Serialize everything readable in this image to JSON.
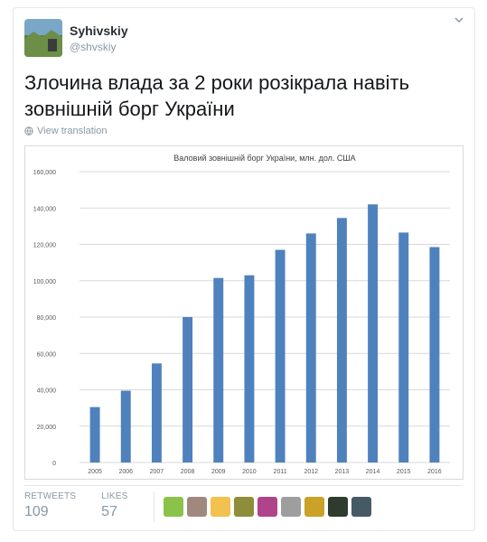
{
  "user": {
    "display_name": "Syhivskiy",
    "handle": "@shvskiy"
  },
  "tweet": {
    "text": "Злочина влада за 2 роки розікрала навіть зовнішній борг України",
    "translate_label": "View translation"
  },
  "stats": {
    "retweets_label": "RETWEETS",
    "retweets_value": "109",
    "likes_label": "LIKES",
    "likes_value": "57"
  },
  "likers": [
    {
      "icon": "liker-avatar",
      "color": "#8bc34a"
    },
    {
      "icon": "liker-avatar",
      "color": "#a1887f"
    },
    {
      "icon": "liker-avatar",
      "color": "#f2c14e"
    },
    {
      "icon": "liker-avatar",
      "color": "#8d8d3a"
    },
    {
      "icon": "liker-avatar",
      "color": "#b0448a"
    },
    {
      "icon": "liker-avatar",
      "color": "#9e9e9e"
    },
    {
      "icon": "liker-avatar",
      "color": "#c9a227"
    },
    {
      "icon": "liker-avatar",
      "color": "#2f3b2f"
    },
    {
      "icon": "liker-avatar",
      "color": "#455a64"
    }
  ],
  "chart_data": {
    "type": "bar",
    "title": "Валовий зовнішній борг України, млн. дол. США",
    "categories": [
      "2005",
      "2006",
      "2007",
      "2008",
      "2009",
      "2010",
      "2011",
      "2012",
      "2013",
      "2014",
      "2015",
      "2016"
    ],
    "values": [
      30500,
      39500,
      54500,
      80000,
      101500,
      103000,
      117000,
      126000,
      134500,
      142000,
      126500,
      118500
    ],
    "ylim": [
      0,
      160000
    ],
    "yticks": [
      "0",
      "20,000",
      "40,000",
      "60,000",
      "80,000",
      "100,000",
      "120,000",
      "140,000",
      "160,000"
    ],
    "grid": true,
    "bar_color": "#4f81bd"
  }
}
